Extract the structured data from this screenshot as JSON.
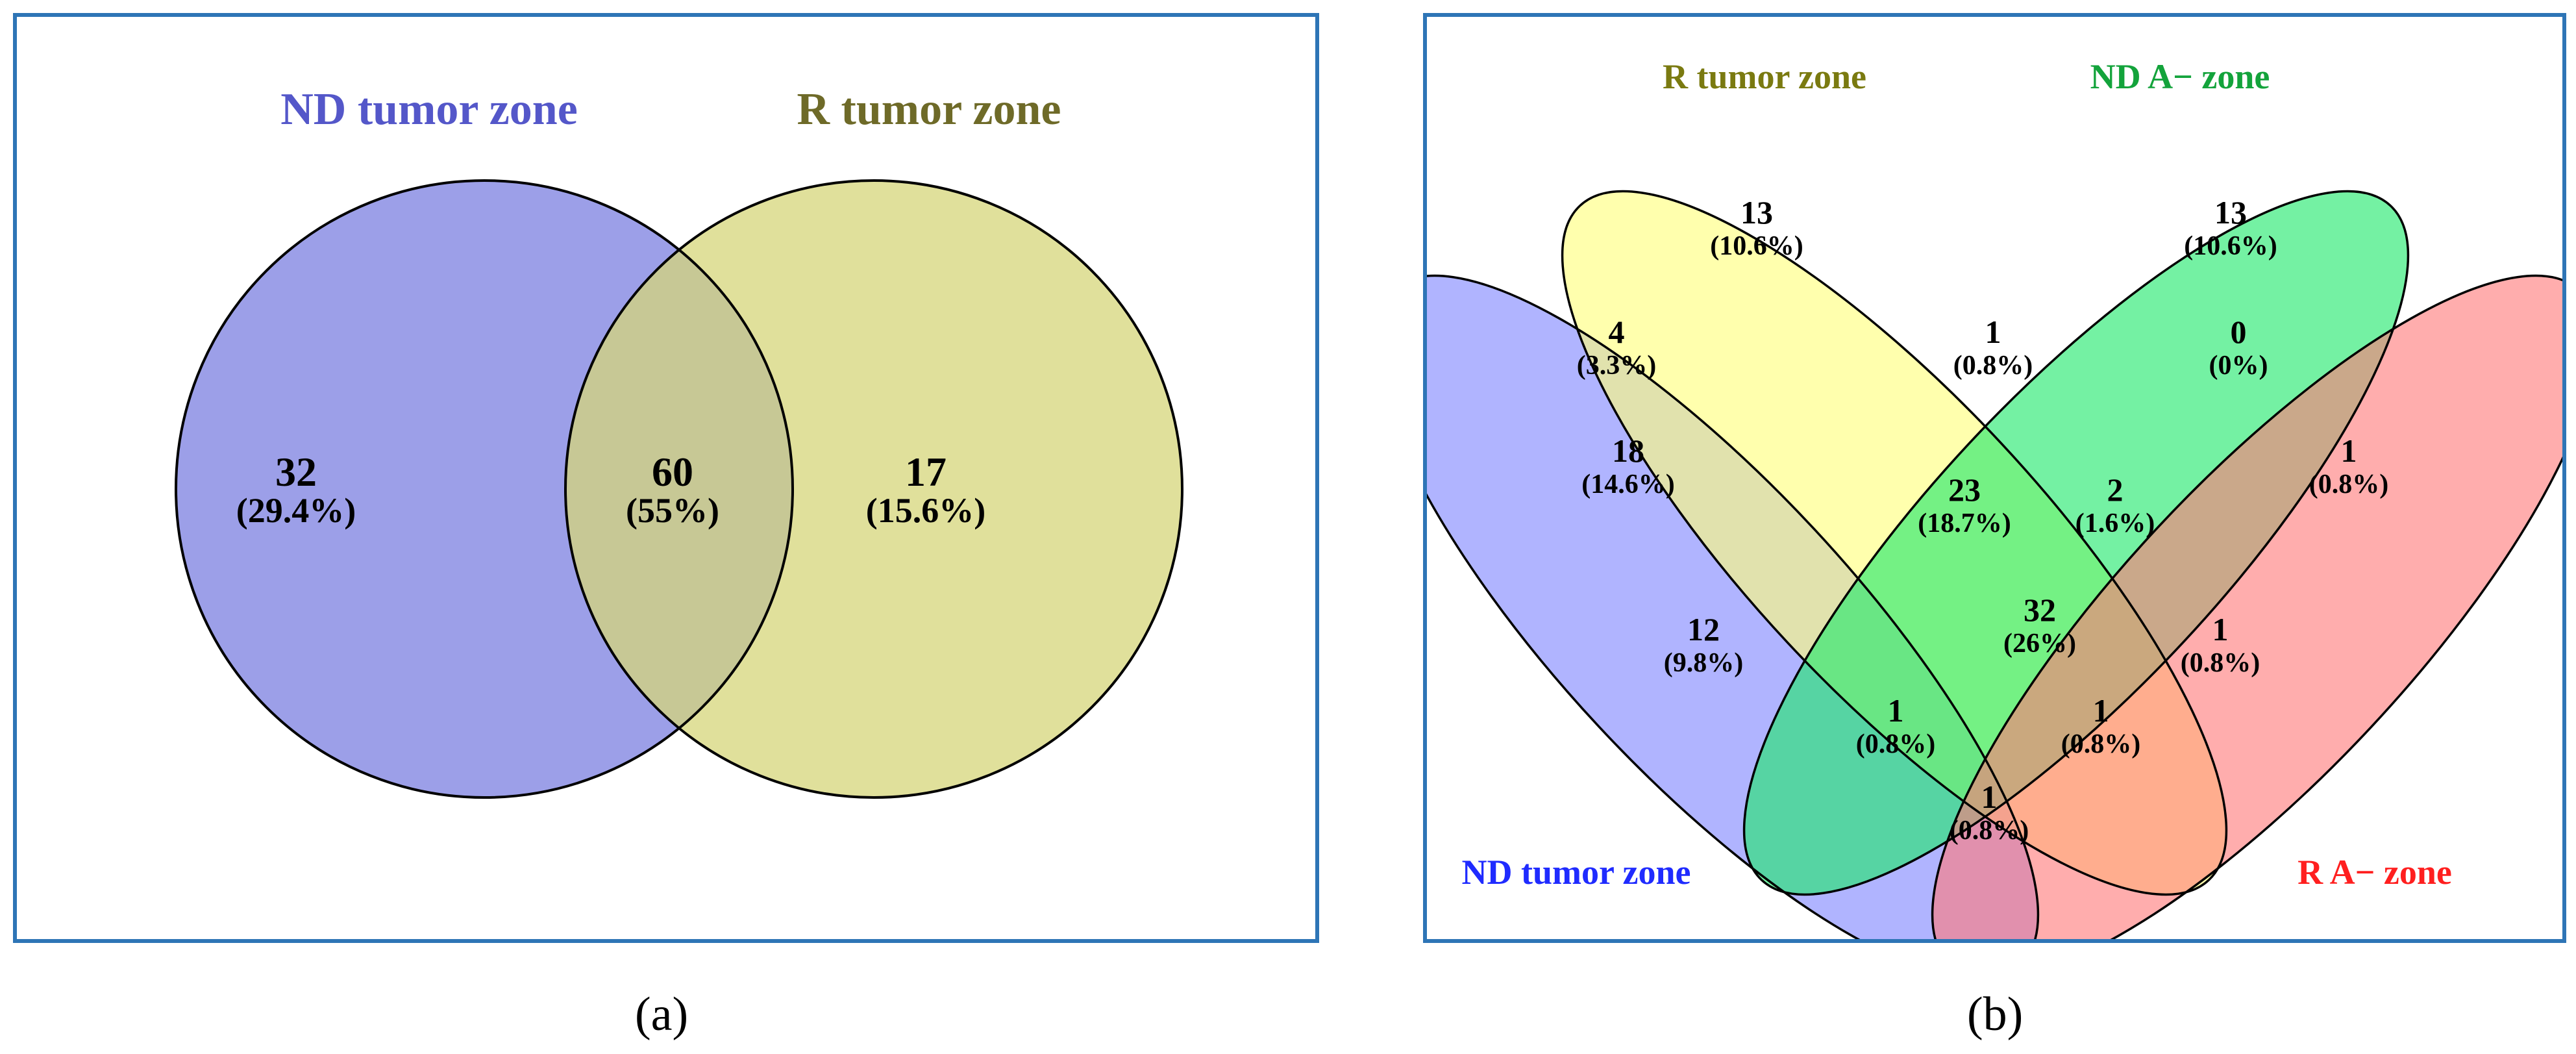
{
  "panels": {
    "a": {
      "caption": "(a)",
      "sets": [
        {
          "label": "ND tumor zone",
          "color": "#7b7fe0",
          "label_color": "#5457c9"
        },
        {
          "label": "R tumor zone",
          "color": "#d6d67a",
          "label_color": "#6e6a28"
        }
      ],
      "regions": [
        {
          "sets": [
            "ND tumor zone"
          ],
          "count": "32",
          "percent": "(29.4%)"
        },
        {
          "sets": [
            "ND tumor zone",
            "R tumor zone"
          ],
          "count": "60",
          "percent": "(55%)"
        },
        {
          "sets": [
            "R tumor zone"
          ],
          "count": "17",
          "percent": "(15.6%)"
        }
      ]
    },
    "b": {
      "caption": "(b)",
      "sets": [
        {
          "label": "ND tumor zone",
          "color": "#7f86ff",
          "label_color": "#1f2bff"
        },
        {
          "label": "R tumor zone",
          "color": "#ffff7a",
          "label_color": "#7a7a10"
        },
        {
          "label": "ND A− zone",
          "color": "#1ee86a",
          "label_color": "#13a33b"
        },
        {
          "label": "R A− zone",
          "color": "#ff7a7a",
          "label_color": "#ff1f1f"
        }
      ],
      "regions": [
        {
          "sets": [
            "R tumor zone"
          ],
          "count": "13",
          "percent": "(10.6%)"
        },
        {
          "sets": [
            "ND A− zone"
          ],
          "count": "13",
          "percent": "(10.6%)"
        },
        {
          "sets": [
            "ND tumor zone",
            "R tumor zone"
          ],
          "count": "4",
          "percent": "(3.3%)"
        },
        {
          "sets": [
            "R tumor zone",
            "ND A− zone"
          ],
          "count": "1",
          "percent": "(0.8%)"
        },
        {
          "sets": [
            "ND A− zone",
            "R A− zone"
          ],
          "count": "0",
          "percent": "(0%)"
        },
        {
          "sets": [
            "ND tumor zone"
          ],
          "count": "18",
          "percent": "(14.6%)"
        },
        {
          "sets": [
            "ND tumor zone",
            "R tumor zone",
            "ND A− zone"
          ],
          "count": "23",
          "percent": "(18.7%)"
        },
        {
          "sets": [
            "R tumor zone",
            "ND A− zone",
            "R A− zone"
          ],
          "count": "2",
          "percent": "(1.6%)"
        },
        {
          "sets": [
            "R A− zone"
          ],
          "count": "1",
          "percent": "(0.8%)"
        },
        {
          "sets": [
            "ND tumor zone",
            "R tumor zone",
            "ND A− zone",
            "R A− zone"
          ],
          "count": "32",
          "percent": "(26%)"
        },
        {
          "sets": [
            "ND tumor zone",
            "ND A− zone"
          ],
          "count": "12",
          "percent": "(9.8%)"
        },
        {
          "sets": [
            "R tumor zone",
            "R A− zone"
          ],
          "count": "1",
          "percent": "(0.8%)"
        },
        {
          "sets": [
            "ND tumor zone",
            "ND A− zone",
            "R A− zone"
          ],
          "count": "1",
          "percent": "(0.8%)"
        },
        {
          "sets": [
            "ND tumor zone",
            "R tumor zone",
            "R A− zone"
          ],
          "count": "1",
          "percent": "(0.8%)"
        },
        {
          "sets": [
            "ND tumor zone",
            "R A− zone"
          ],
          "count": "1",
          "percent": "(0.8%)"
        }
      ]
    }
  }
}
